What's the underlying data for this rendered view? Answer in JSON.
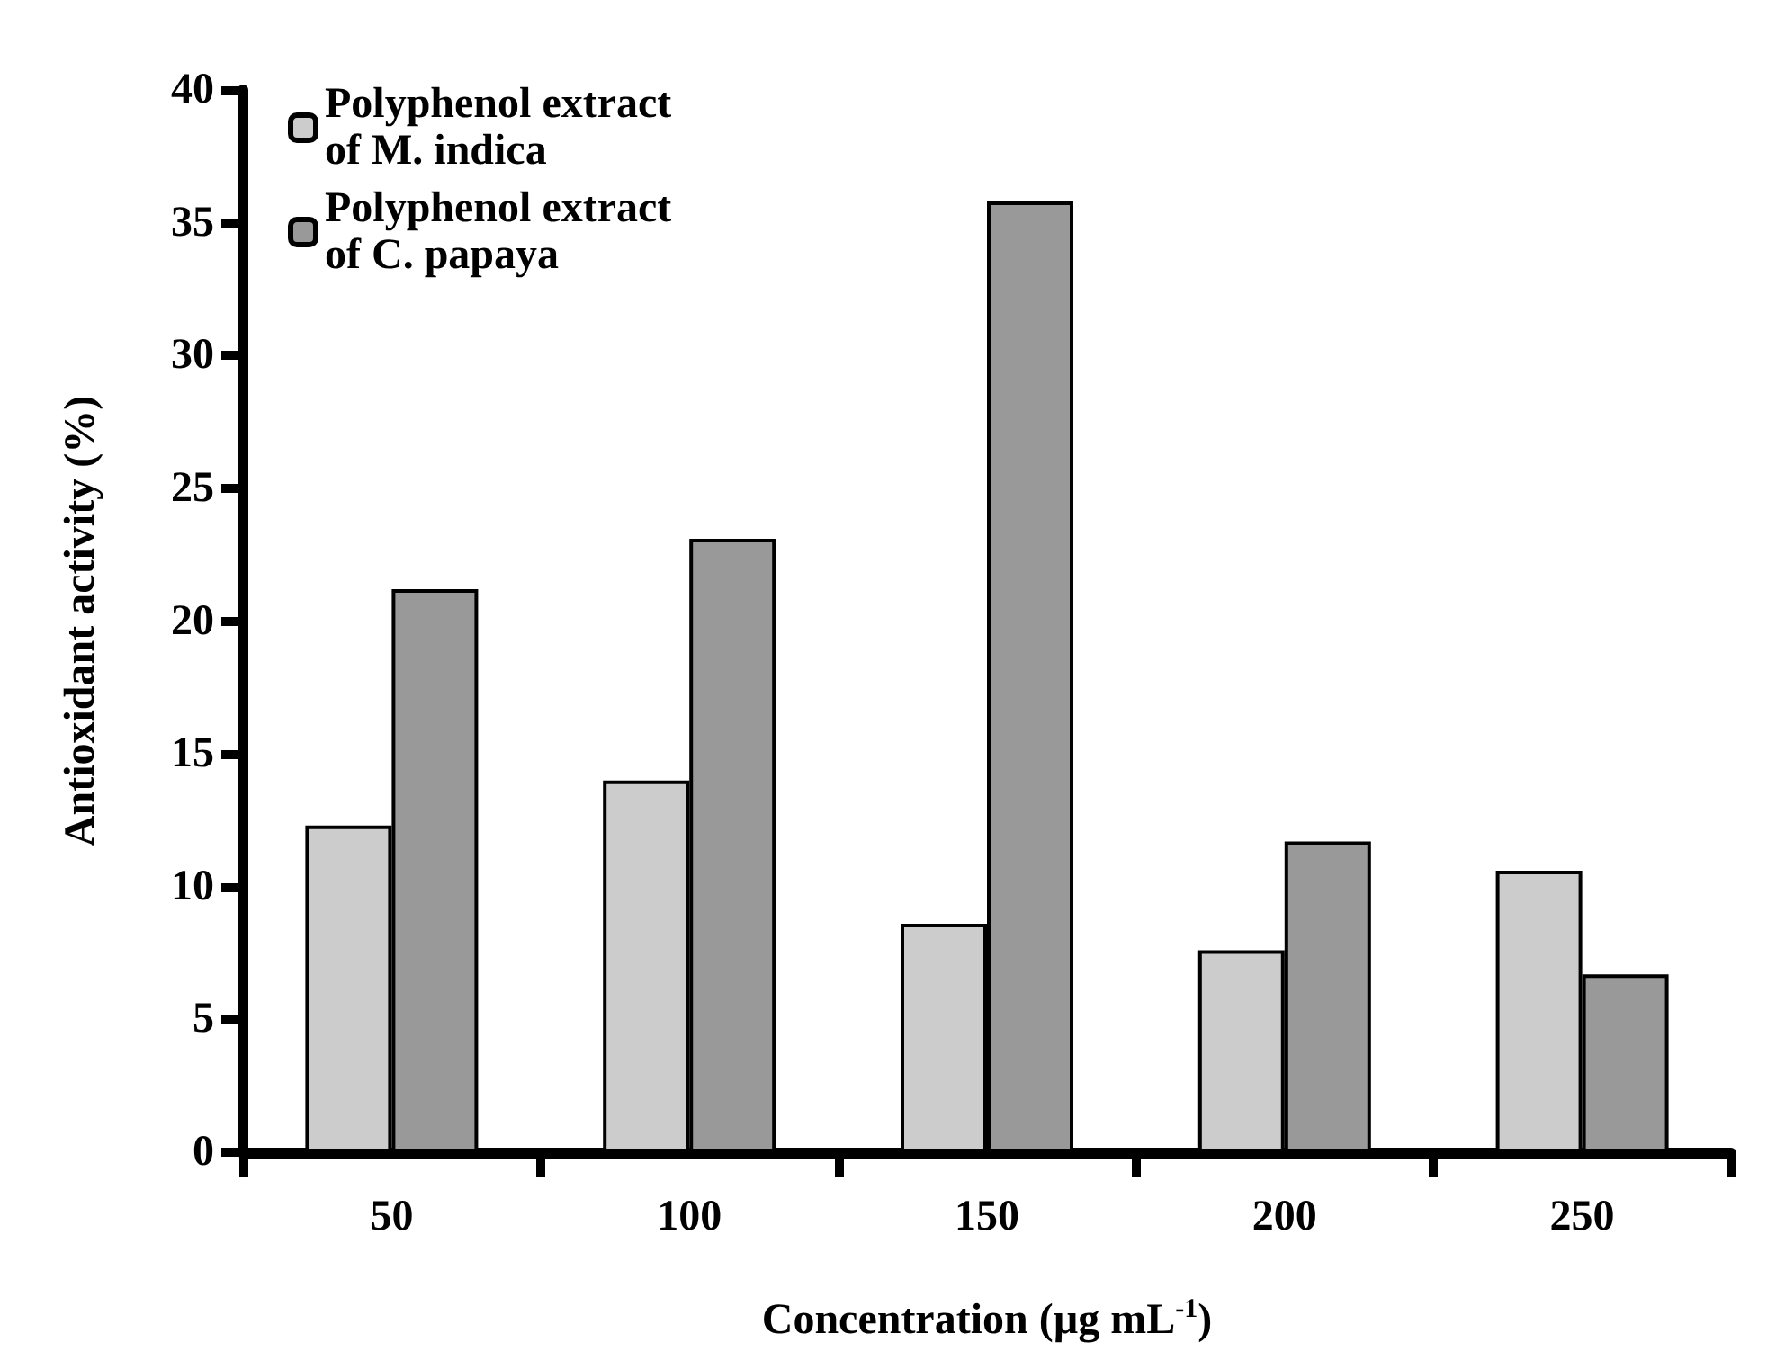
{
  "chart_data": {
    "type": "bar",
    "xlabel": "Concentration (µg mL$^{-1}$)",
    "ylabel": "Antioxidant activity (%)",
    "categories": [
      "50",
      "100",
      "150",
      "200",
      "250"
    ],
    "series": [
      {
        "name": "Polyphenol extract of M. indica",
        "color": "#cccccc",
        "values": [
          12.3,
          14.0,
          8.6,
          7.6,
          10.6
        ]
      },
      {
        "name": "Polyphenol extract of C. papaya",
        "color": "#999999",
        "values": [
          21.2,
          23.1,
          35.8,
          11.7,
          6.7
        ]
      }
    ],
    "ylim": [
      0,
      40
    ],
    "yticks": [
      0,
      5,
      10,
      15,
      20,
      25,
      30,
      35,
      40
    ],
    "grid": false,
    "legend": "top left"
  }
}
